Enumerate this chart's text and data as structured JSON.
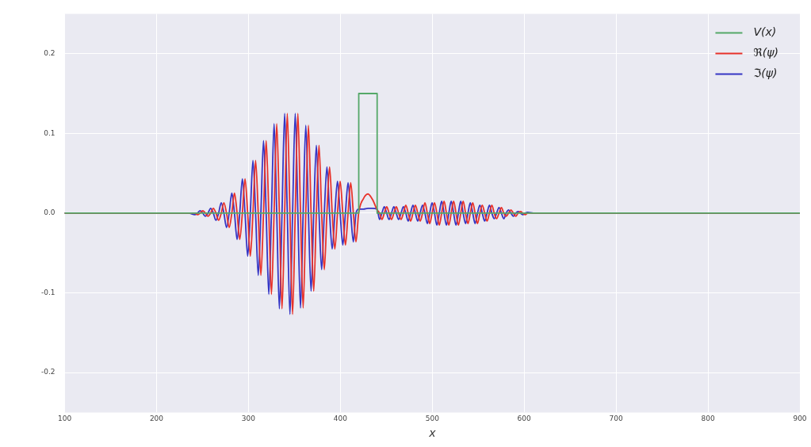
{
  "chart_data": {
    "type": "line",
    "xlabel": "x",
    "xlim": [
      100,
      900
    ],
    "xticks": [
      100,
      200,
      300,
      400,
      500,
      600,
      700,
      800,
      900
    ],
    "ylim": [
      -0.25,
      0.25
    ],
    "yticks": [
      -0.2,
      -0.1,
      {
        "value": 0,
        "label": "0.0"
      },
      0.1,
      0.2
    ],
    "grid": true,
    "legend": "top right",
    "x": [
      100,
      235,
      241.625,
      244.5,
      247.375,
      250.25,
      253.125,
      256,
      258.875,
      261.75,
      264.625,
      267.5,
      270.375,
      273.25,
      276.125,
      279,
      281.875,
      284.75,
      287.625,
      290.5,
      293.375,
      296.25,
      299.125,
      302,
      304.875,
      307.75,
      310.625,
      313.5,
      316.375,
      319.25,
      322.125,
      325,
      327.875,
      330.75,
      333.625,
      336.5,
      339.375,
      342.25,
      345.125,
      348,
      350.875,
      353.75,
      356.625,
      359.5,
      362.375,
      365.25,
      368.125,
      371,
      373.875,
      376.75,
      379.625,
      382.5,
      385.375,
      388.25,
      391.125,
      394,
      396.875,
      399.75,
      402.625,
      405.5,
      408.375,
      411.25,
      414.125,
      417,
      419.875,
      425,
      430,
      435,
      440,
      442.6,
      445.2,
      447.8,
      450.4,
      453,
      455.6,
      458.2,
      460.8,
      463.4,
      466,
      468.6,
      471.2,
      473.8,
      476.4,
      479,
      481.6,
      484.2,
      486.8,
      489.4,
      492,
      494.6,
      497.2,
      499.8,
      502.4,
      505,
      507.6,
      510.2,
      512.8,
      515.4,
      518,
      520.6,
      523.2,
      525.8,
      528.4,
      531,
      533.6,
      536.2,
      538.8,
      541.4,
      544,
      546.6,
      549.2,
      551.8,
      554.4,
      557,
      559.6,
      562.2,
      564.8,
      567.4,
      570,
      572.6,
      575.2,
      577.8,
      580.4,
      583,
      585.6,
      588.2,
      590.8,
      593.4,
      596,
      598.6,
      601.2,
      603.8,
      610,
      900
    ],
    "series": [
      {
        "name": "V(x)",
        "color": "#55a868",
        "x": [
          100,
          420,
          420,
          440,
          440,
          900
        ],
        "values": [
          0,
          0,
          0.15,
          0.15,
          0,
          0
        ]
      },
      {
        "name": "ℜ(ψ)",
        "color": "#e8322a",
        "values": [
          0,
          0,
          0,
          -0.002,
          0,
          0.003,
          0,
          -0.004,
          0,
          0.006,
          0,
          -0.009,
          0,
          0.013,
          0,
          -0.018,
          0,
          0.025,
          0,
          -0.033,
          0,
          0.043,
          0,
          -0.054,
          0,
          0.066,
          0,
          -0.078,
          0,
          0.091,
          0,
          -0.102,
          0,
          0.112,
          0,
          -0.12,
          0,
          0.125,
          0,
          -0.127,
          0,
          0.125,
          0,
          -0.119,
          0,
          0.11,
          0,
          -0.098,
          0,
          0.085,
          0,
          -0.071,
          0,
          0.058,
          0,
          -0.045,
          0,
          0.04,
          0,
          -0.04,
          0,
          0.038,
          0,
          -0.036,
          0,
          0.018,
          0.024,
          0.017,
          0.004,
          0,
          -0.008,
          0,
          0.008,
          0,
          -0.008,
          0,
          0.008,
          0,
          -0.008,
          0,
          0.01,
          0,
          -0.01,
          0,
          0.01,
          0,
          -0.01,
          0,
          0.013,
          0,
          -0.013,
          0,
          0.013,
          0,
          -0.015,
          0,
          0.015,
          0,
          -0.015,
          0,
          0.015,
          0,
          -0.015,
          0,
          0.015,
          0,
          -0.013,
          0,
          0.013,
          0,
          -0.013,
          0,
          0.01,
          0,
          -0.01,
          0,
          0.01,
          0,
          -0.007,
          0,
          0.007,
          0,
          -0.004,
          0,
          0.004,
          0,
          -0.004,
          0,
          0.002,
          0,
          -0.002,
          0,
          0,
          0
        ]
      },
      {
        "name": "ℑ(ψ)",
        "color": "#3434c4",
        "values": [
          0,
          0,
          -0.002,
          0,
          0.003,
          0,
          -0.004,
          0,
          0.006,
          0,
          -0.009,
          0,
          0.013,
          0,
          -0.018,
          0,
          0.025,
          0,
          -0.033,
          0,
          0.043,
          0,
          -0.054,
          0,
          0.066,
          0,
          -0.078,
          0,
          0.091,
          0,
          -0.102,
          0,
          0.112,
          0,
          -0.12,
          0,
          0.125,
          0,
          -0.127,
          0,
          0.125,
          0,
          -0.119,
          0,
          0.11,
          0,
          -0.098,
          0,
          0.085,
          0,
          -0.071,
          0,
          0.058,
          0,
          -0.045,
          0,
          0.04,
          0,
          -0.04,
          0,
          0.038,
          0,
          -0.036,
          0,
          0.005,
          0.005,
          0.006,
          0.006,
          0.005,
          -0.008,
          0,
          0.008,
          0,
          -0.008,
          0,
          0.008,
          0,
          -0.008,
          0,
          0.008,
          0,
          -0.01,
          0,
          0.01,
          0,
          -0.01,
          0,
          0.01,
          0,
          -0.013,
          0,
          0.013,
          0,
          -0.015,
          0,
          0.015,
          0,
          -0.015,
          0,
          0.015,
          0,
          -0.015,
          0,
          0.015,
          0,
          -0.013,
          0,
          0.013,
          0,
          -0.013,
          0,
          0.01,
          0,
          -0.01,
          0,
          0.01,
          0,
          -0.007,
          0,
          0.007,
          0,
          -0.007,
          0,
          0.004,
          0,
          -0.004,
          0,
          0.002,
          0,
          -0.002,
          0,
          0.001,
          0,
          0
        ]
      }
    ]
  }
}
